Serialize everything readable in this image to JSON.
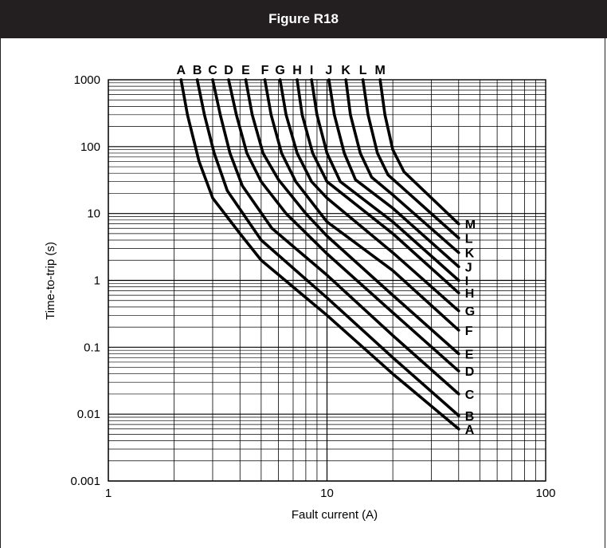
{
  "figure": {
    "title": "Figure R18"
  },
  "colors": {
    "header_bg": "#231f20",
    "header_text": "#ffffff",
    "grid": "#000000",
    "curve": "#000000"
  },
  "chart_data": {
    "type": "line",
    "xlabel": "Fault current (A)",
    "ylabel": "Time-to-trip (s)",
    "xscale": "log",
    "yscale": "log",
    "xlim": [
      1,
      100
    ],
    "ylim": [
      0.001,
      1000
    ],
    "x_ticks": [
      "1",
      "10",
      "100"
    ],
    "y_ticks": [
      "0.001",
      "0.01",
      "0.1",
      "1",
      "10",
      "100",
      "1000"
    ],
    "grid": true,
    "series": [
      {
        "name": "A",
        "points": [
          [
            2.15,
            1000
          ],
          [
            2.3,
            300
          ],
          [
            2.6,
            60
          ],
          [
            3.0,
            17
          ],
          [
            4.0,
            5
          ],
          [
            5.0,
            2
          ],
          [
            10,
            0.3
          ],
          [
            20,
            0.04
          ],
          [
            40,
            0.006
          ]
        ]
      },
      {
        "name": "B",
        "points": [
          [
            2.55,
            1000
          ],
          [
            2.75,
            300
          ],
          [
            3.05,
            80
          ],
          [
            3.5,
            22
          ],
          [
            5.0,
            4
          ],
          [
            10,
            0.55
          ],
          [
            20,
            0.07
          ],
          [
            40,
            0.0095
          ]
        ]
      },
      {
        "name": "C",
        "points": [
          [
            3.0,
            1000
          ],
          [
            3.25,
            300
          ],
          [
            3.6,
            80
          ],
          [
            4.1,
            26
          ],
          [
            5.6,
            6
          ],
          [
            10,
            1.2
          ],
          [
            20,
            0.15
          ],
          [
            40,
            0.02
          ]
        ]
      },
      {
        "name": "D",
        "points": [
          [
            3.55,
            1000
          ],
          [
            3.85,
            300
          ],
          [
            4.3,
            80
          ],
          [
            5.0,
            30
          ],
          [
            6.5,
            10
          ],
          [
            10,
            2.5
          ],
          [
            20,
            0.33
          ],
          [
            40,
            0.044
          ]
        ]
      },
      {
        "name": "E",
        "points": [
          [
            4.25,
            1000
          ],
          [
            4.55,
            300
          ],
          [
            5.1,
            80
          ],
          [
            6.0,
            32
          ],
          [
            8.0,
            10
          ],
          [
            10,
            4.6
          ],
          [
            20,
            0.6
          ],
          [
            40,
            0.08
          ]
        ]
      },
      {
        "name": "F",
        "points": [
          [
            5.2,
            1000
          ],
          [
            5.55,
            300
          ],
          [
            6.2,
            80
          ],
          [
            7.2,
            30
          ],
          [
            10,
            7.5
          ],
          [
            20,
            1.4
          ],
          [
            40,
            0.18
          ]
        ]
      },
      {
        "name": "G",
        "points": [
          [
            6.1,
            1000
          ],
          [
            6.5,
            300
          ],
          [
            7.3,
            80
          ],
          [
            8.5,
            30
          ],
          [
            10,
            17
          ],
          [
            20,
            2.6
          ],
          [
            40,
            0.35
          ]
        ]
      },
      {
        "name": "H",
        "points": [
          [
            7.3,
            1000
          ],
          [
            7.7,
            300
          ],
          [
            8.6,
            80
          ],
          [
            10,
            30
          ],
          [
            20,
            5
          ],
          [
            40,
            0.65
          ]
        ]
      },
      {
        "name": "I",
        "points": [
          [
            8.5,
            1000
          ],
          [
            9.0,
            300
          ],
          [
            10.0,
            80
          ],
          [
            11.5,
            30
          ],
          [
            20,
            7.5
          ],
          [
            40,
            1.0
          ]
        ]
      },
      {
        "name": "J",
        "points": [
          [
            10.2,
            1000
          ],
          [
            10.8,
            300
          ],
          [
            12.0,
            80
          ],
          [
            13.5,
            32
          ],
          [
            20,
            12
          ],
          [
            40,
            1.6
          ]
        ]
      },
      {
        "name": "K",
        "points": [
          [
            12.2,
            1000
          ],
          [
            12.8,
            300
          ],
          [
            14.2,
            80
          ],
          [
            16.0,
            35
          ],
          [
            20,
            19
          ],
          [
            40,
            2.6
          ]
        ]
      },
      {
        "name": "L",
        "points": [
          [
            14.6,
            1000
          ],
          [
            15.4,
            300
          ],
          [
            17.0,
            80
          ],
          [
            19.0,
            38
          ],
          [
            40,
            4.3
          ]
        ]
      },
      {
        "name": "M",
        "points": [
          [
            17.5,
            1000
          ],
          [
            18.4,
            300
          ],
          [
            20.0,
            90
          ],
          [
            22.5,
            42
          ],
          [
            40,
            7.0
          ]
        ]
      }
    ]
  }
}
